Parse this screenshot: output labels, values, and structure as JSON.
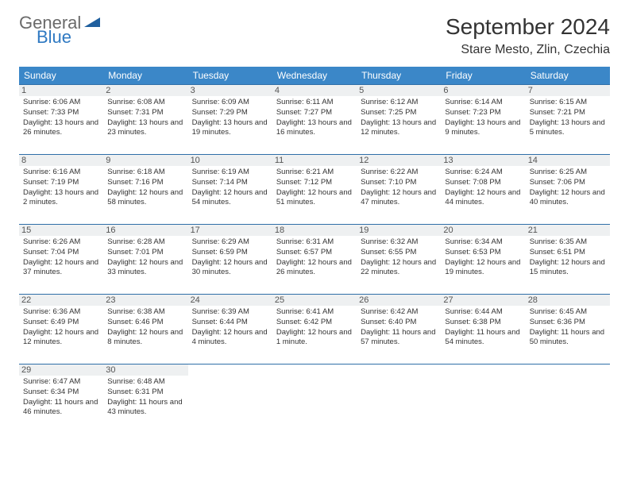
{
  "logo": {
    "word1": "General",
    "word2": "Blue"
  },
  "title": "September 2024",
  "location": "Stare Mesto, Zlin, Czechia",
  "header_bg": "#3b87c8",
  "day_headers": [
    "Sunday",
    "Monday",
    "Tuesday",
    "Wednesday",
    "Thursday",
    "Friday",
    "Saturday"
  ],
  "cells": [
    {
      "n": "1",
      "sr": "6:06 AM",
      "ss": "7:33 PM",
      "dl": "13 hours and 26 minutes."
    },
    {
      "n": "2",
      "sr": "6:08 AM",
      "ss": "7:31 PM",
      "dl": "13 hours and 23 minutes."
    },
    {
      "n": "3",
      "sr": "6:09 AM",
      "ss": "7:29 PM",
      "dl": "13 hours and 19 minutes."
    },
    {
      "n": "4",
      "sr": "6:11 AM",
      "ss": "7:27 PM",
      "dl": "13 hours and 16 minutes."
    },
    {
      "n": "5",
      "sr": "6:12 AM",
      "ss": "7:25 PM",
      "dl": "13 hours and 12 minutes."
    },
    {
      "n": "6",
      "sr": "6:14 AM",
      "ss": "7:23 PM",
      "dl": "13 hours and 9 minutes."
    },
    {
      "n": "7",
      "sr": "6:15 AM",
      "ss": "7:21 PM",
      "dl": "13 hours and 5 minutes."
    },
    {
      "n": "8",
      "sr": "6:16 AM",
      "ss": "7:19 PM",
      "dl": "13 hours and 2 minutes."
    },
    {
      "n": "9",
      "sr": "6:18 AM",
      "ss": "7:16 PM",
      "dl": "12 hours and 58 minutes."
    },
    {
      "n": "10",
      "sr": "6:19 AM",
      "ss": "7:14 PM",
      "dl": "12 hours and 54 minutes."
    },
    {
      "n": "11",
      "sr": "6:21 AM",
      "ss": "7:12 PM",
      "dl": "12 hours and 51 minutes."
    },
    {
      "n": "12",
      "sr": "6:22 AM",
      "ss": "7:10 PM",
      "dl": "12 hours and 47 minutes."
    },
    {
      "n": "13",
      "sr": "6:24 AM",
      "ss": "7:08 PM",
      "dl": "12 hours and 44 minutes."
    },
    {
      "n": "14",
      "sr": "6:25 AM",
      "ss": "7:06 PM",
      "dl": "12 hours and 40 minutes."
    },
    {
      "n": "15",
      "sr": "6:26 AM",
      "ss": "7:04 PM",
      "dl": "12 hours and 37 minutes."
    },
    {
      "n": "16",
      "sr": "6:28 AM",
      "ss": "7:01 PM",
      "dl": "12 hours and 33 minutes."
    },
    {
      "n": "17",
      "sr": "6:29 AM",
      "ss": "6:59 PM",
      "dl": "12 hours and 30 minutes."
    },
    {
      "n": "18",
      "sr": "6:31 AM",
      "ss": "6:57 PM",
      "dl": "12 hours and 26 minutes."
    },
    {
      "n": "19",
      "sr": "6:32 AM",
      "ss": "6:55 PM",
      "dl": "12 hours and 22 minutes."
    },
    {
      "n": "20",
      "sr": "6:34 AM",
      "ss": "6:53 PM",
      "dl": "12 hours and 19 minutes."
    },
    {
      "n": "21",
      "sr": "6:35 AM",
      "ss": "6:51 PM",
      "dl": "12 hours and 15 minutes."
    },
    {
      "n": "22",
      "sr": "6:36 AM",
      "ss": "6:49 PM",
      "dl": "12 hours and 12 minutes."
    },
    {
      "n": "23",
      "sr": "6:38 AM",
      "ss": "6:46 PM",
      "dl": "12 hours and 8 minutes."
    },
    {
      "n": "24",
      "sr": "6:39 AM",
      "ss": "6:44 PM",
      "dl": "12 hours and 4 minutes."
    },
    {
      "n": "25",
      "sr": "6:41 AM",
      "ss": "6:42 PM",
      "dl": "12 hours and 1 minute."
    },
    {
      "n": "26",
      "sr": "6:42 AM",
      "ss": "6:40 PM",
      "dl": "11 hours and 57 minutes."
    },
    {
      "n": "27",
      "sr": "6:44 AM",
      "ss": "6:38 PM",
      "dl": "11 hours and 54 minutes."
    },
    {
      "n": "28",
      "sr": "6:45 AM",
      "ss": "6:36 PM",
      "dl": "11 hours and 50 minutes."
    },
    {
      "n": "29",
      "sr": "6:47 AM",
      "ss": "6:34 PM",
      "dl": "11 hours and 46 minutes."
    },
    {
      "n": "30",
      "sr": "6:48 AM",
      "ss": "6:31 PM",
      "dl": "11 hours and 43 minutes."
    }
  ],
  "labels": {
    "sunrise": "Sunrise:",
    "sunset": "Sunset:",
    "daylight": "Daylight:"
  }
}
